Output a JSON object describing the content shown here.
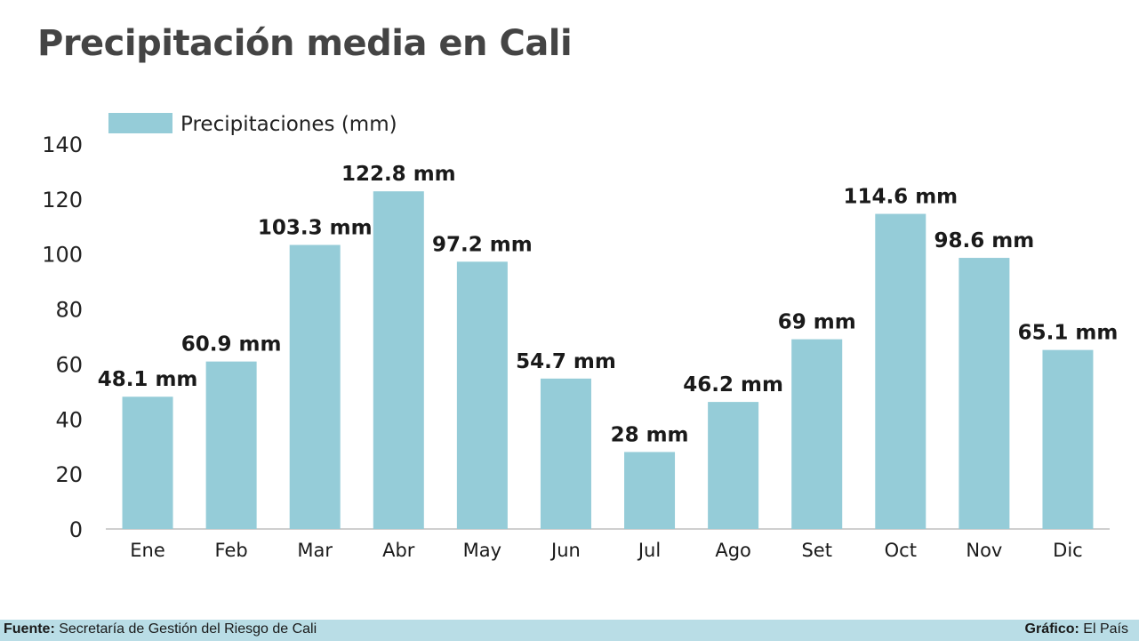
{
  "title": "Precipitación media en Cali",
  "colors": {
    "bar": "#95ccd8",
    "axis": "#bfbfbf",
    "title": "#444444",
    "footer_bg": "#b9dde6"
  },
  "chart_data": {
    "type": "bar",
    "title": "Precipitación media en Cali",
    "categories": [
      "Ene",
      "Feb",
      "Mar",
      "Abr",
      "May",
      "Jun",
      "Jul",
      "Ago",
      "Set",
      "Oct",
      "Nov",
      "Dic"
    ],
    "series": [
      {
        "name": "Precipitaciones (mm)",
        "values": [
          48.1,
          60.9,
          103.3,
          122.8,
          97.2,
          54.7,
          28,
          46.2,
          69,
          114.6,
          98.6,
          65.1
        ]
      }
    ],
    "data_labels": [
      "48.1 mm",
      "60.9 mm",
      "103.3 mm",
      "122.8 mm",
      "97.2 mm",
      "54.7 mm",
      "28 mm",
      "46.2 mm",
      "69 mm",
      "114.6 mm",
      "98.6 mm",
      "65.1 mm"
    ],
    "yticks": [
      0,
      20,
      40,
      60,
      80,
      100,
      120,
      140
    ],
    "ylim": [
      0,
      140
    ],
    "xlabel": "",
    "ylabel": "",
    "grid": false,
    "legend": "top-left"
  },
  "footer": {
    "source_label": "Fuente:",
    "source_text": " Secretaría de Gestión del Riesgo de Cali",
    "credit_label": "Gráfico:",
    "credit_text": " El País"
  }
}
